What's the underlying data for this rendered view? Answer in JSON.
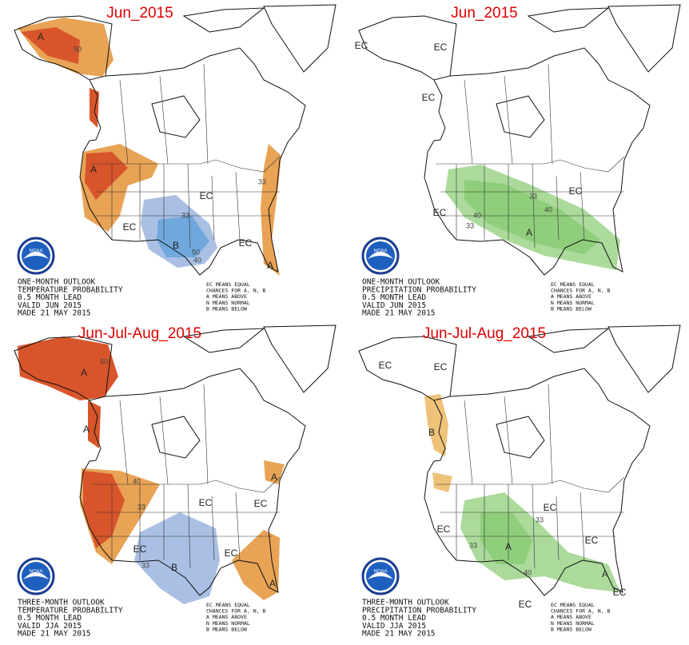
{
  "panels": [
    {
      "title": "Jun_2015",
      "labels": [
        "A",
        "50",
        "A",
        "33",
        "EC",
        "33",
        "EC",
        "B",
        "50",
        "40",
        "EC",
        "A"
      ],
      "caption": [
        "ONE-MONTH OUTLOOK",
        "TEMPERATURE PROBABILITY",
        "0.5 MONTH LEAD",
        "VALID JUN 2015",
        "MADE 21 MAY 2015"
      ],
      "legend": [
        "EC MEANS EQUAL",
        "CHANCES FOR A, N, B",
        "A MEANS ABOVE",
        "N MEANS NORMAL",
        "B MEANS BELOW"
      ],
      "logo": "NOAA"
    },
    {
      "title": "Jun_2015",
      "labels": [
        "EC",
        "EC",
        "EC",
        "EC",
        "EC",
        "33",
        "40",
        "40",
        "33",
        "A"
      ],
      "caption": [
        "ONE-MONTH OUTLOOK",
        "PRECIPITATION PROBABILITY",
        "0.5 MONTH LEAD",
        "VALID JUN 2015",
        "MADE 21 MAY 2015"
      ],
      "legend": [
        "EC MEANS EQUAL",
        "CHANCES FOR A, N, B",
        "A MEANS ABOVE",
        "N MEANS NORMAL",
        "B MEANS BELOW"
      ],
      "logo": "NOAA"
    },
    {
      "title": "Jun-Jul-Aug_2015",
      "labels": [
        "A",
        "50",
        "A",
        "40",
        "33",
        "EC",
        "A",
        "EC",
        "EC",
        "B",
        "33",
        "EC",
        "A"
      ],
      "caption": [
        "THREE-MONTH OUTLOOK",
        "TEMPERATURE PROBABILITY",
        "0.5 MONTH LEAD",
        "VALID JJA 2015",
        "MADE 21 MAY 2015"
      ],
      "legend": [
        "EC MEANS EQUAL",
        "CHANCES FOR A, N, B",
        "A MEANS ABOVE",
        "N MEANS NORMAL",
        "B MEANS BELOW"
      ],
      "logo": "NOAA"
    },
    {
      "title": "Jun-Jul-Aug_2015",
      "labels": [
        "EC",
        "EC",
        "B",
        "EC",
        "33",
        "EC",
        "33",
        "A",
        "EC",
        "40",
        "A",
        "EC",
        "EC"
      ],
      "caption": [
        "THREE-MONTH OUTLOOK",
        "PRECIPITATION PROBABILITY",
        "0.5 MONTH LEAD",
        "VALID JJA 2015",
        "MADE 21 MAY 2015"
      ],
      "legend": [
        "EC MEANS EQUAL",
        "CHANCES FOR A, N, B",
        "A MEANS ABOVE",
        "N MEANS NORMAL",
        "B MEANS BELOW"
      ],
      "logo": "NOAA"
    }
  ]
}
